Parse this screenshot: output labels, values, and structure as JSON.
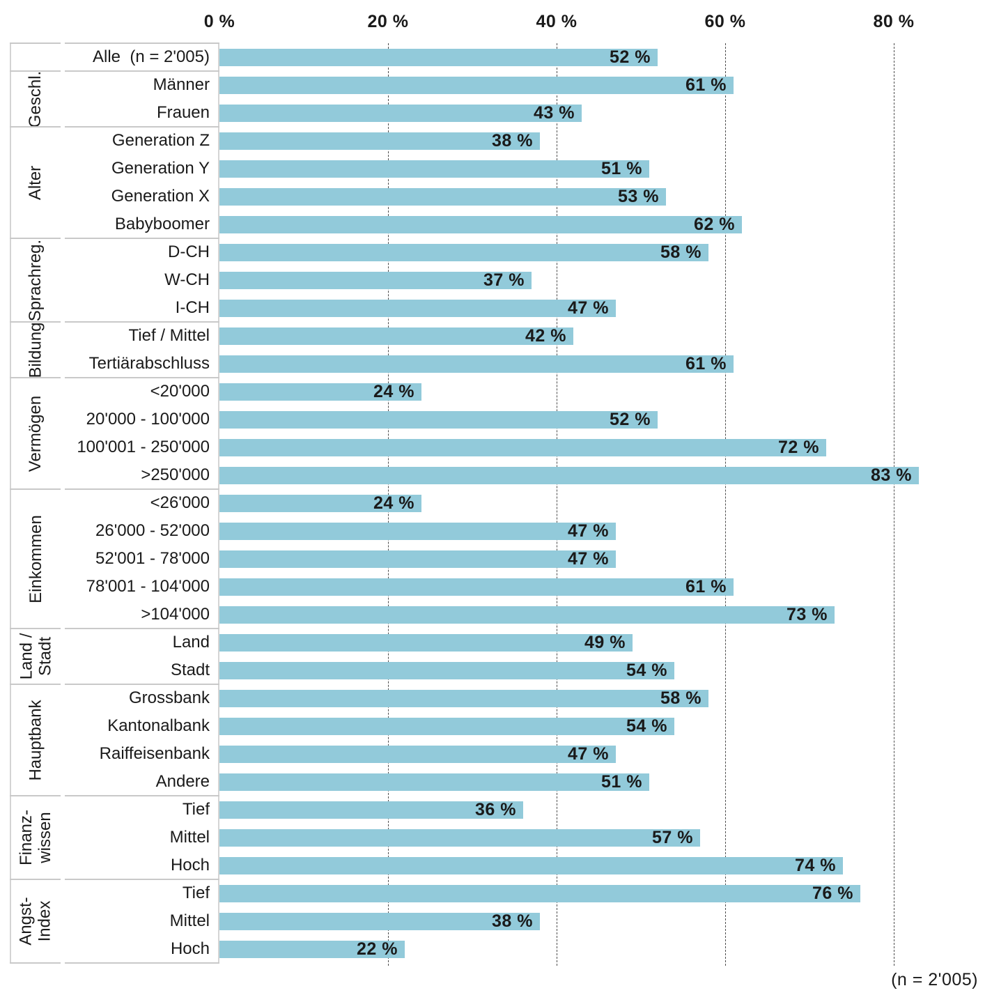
{
  "footer_note": "(n = 2'005)",
  "axis": {
    "tick_labels": [
      "0 %",
      "20 %",
      "40 %",
      "60 %",
      "80 %"
    ],
    "tick_values": [
      0,
      20,
      40,
      60,
      80
    ]
  },
  "style": {
    "bar_color": "#92cada",
    "gridline_color": "#4d4d4d",
    "separator_color": "#c9c9c9",
    "text_color": "#1a1a1a"
  },
  "chart_data": {
    "type": "bar",
    "orientation": "horizontal",
    "unit": "%",
    "value_suffix": " %",
    "xlim": [
      0,
      89
    ],
    "x_ticks": [
      0,
      20,
      40,
      60,
      80
    ],
    "grid": "vertical-dashed",
    "legend": "none",
    "sample_note": "(n = 2'005)",
    "groups": [
      {
        "label": "",
        "rows": [
          {
            "label": "Alle  (n = 2'005)",
            "value": 52
          }
        ]
      },
      {
        "label": "Geschl.",
        "rows": [
          {
            "label": "Männer",
            "value": 61
          },
          {
            "label": "Frauen",
            "value": 43
          }
        ]
      },
      {
        "label": "Alter",
        "rows": [
          {
            "label": "Generation Z",
            "value": 38
          },
          {
            "label": "Generation Y",
            "value": 51
          },
          {
            "label": "Generation X",
            "value": 53
          },
          {
            "label": "Babyboomer",
            "value": 62
          }
        ]
      },
      {
        "label": "Sprachreg.",
        "rows": [
          {
            "label": "D-CH",
            "value": 58
          },
          {
            "label": "W-CH",
            "value": 37
          },
          {
            "label": "I-CH",
            "value": 47
          }
        ]
      },
      {
        "label": "Bildung",
        "rows": [
          {
            "label": "Tief / Mittel",
            "value": 42
          },
          {
            "label": "Tertiärabschluss",
            "value": 61
          }
        ]
      },
      {
        "label": "Vermögen",
        "rows": [
          {
            "label": "<20'000",
            "value": 24
          },
          {
            "label": "20'000 - 100'000",
            "value": 52
          },
          {
            "label": "100'001 - 250'000",
            "value": 72
          },
          {
            "label": ">250'000",
            "value": 83
          }
        ]
      },
      {
        "label": "Einkommen",
        "rows": [
          {
            "label": "<26'000",
            "value": 24
          },
          {
            "label": "26'000 - 52'000",
            "value": 47
          },
          {
            "label": "52'001 - 78'000",
            "value": 47
          },
          {
            "label": "78'001 - 104'000",
            "value": 61
          },
          {
            "label": ">104'000",
            "value": 73
          }
        ]
      },
      {
        "label": "Land /\nStadt",
        "rows": [
          {
            "label": "Land",
            "value": 49
          },
          {
            "label": "Stadt",
            "value": 54
          }
        ]
      },
      {
        "label": "Hauptbank",
        "rows": [
          {
            "label": "Grossbank",
            "value": 58
          },
          {
            "label": "Kantonalbank",
            "value": 54
          },
          {
            "label": "Raiffeisenbank",
            "value": 47
          },
          {
            "label": "Andere",
            "value": 51
          }
        ]
      },
      {
        "label": "Finanz-\nwissen",
        "rows": [
          {
            "label": "Tief",
            "value": 36
          },
          {
            "label": "Mittel",
            "value": 57
          },
          {
            "label": "Hoch",
            "value": 74
          }
        ]
      },
      {
        "label": "Angst-\nIndex",
        "rows": [
          {
            "label": "Tief",
            "value": 76
          },
          {
            "label": "Mittel",
            "value": 38
          },
          {
            "label": "Hoch",
            "value": 22
          }
        ]
      }
    ]
  }
}
